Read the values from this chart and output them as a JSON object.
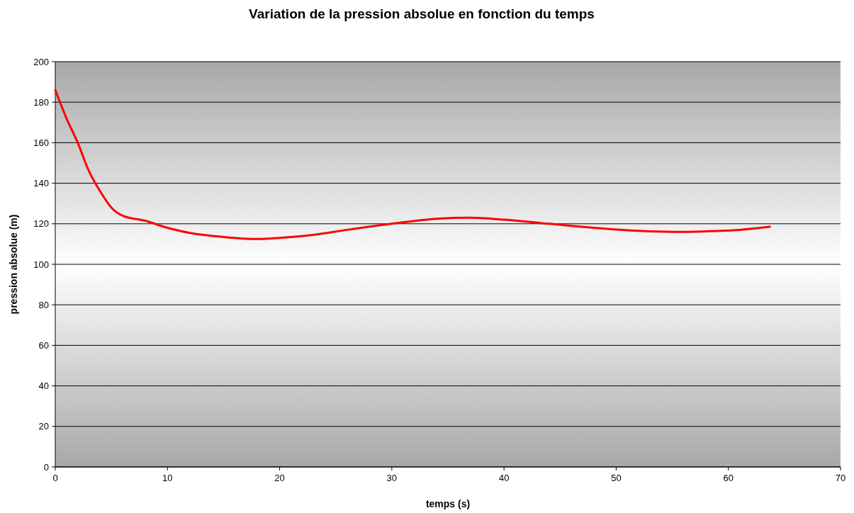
{
  "chart_data": {
    "type": "line",
    "title": "Variation  de la pression absolue en fonction du temps",
    "xlabel": "temps (s)",
    "ylabel": "pression absolue (m)",
    "xlim": [
      0,
      70
    ],
    "xticks": [
      0,
      10,
      20,
      30,
      40,
      50,
      60,
      70
    ],
    "ylim": [
      0,
      200
    ],
    "yticks": [
      0,
      20,
      40,
      60,
      80,
      100,
      120,
      140,
      160,
      180,
      200
    ],
    "grid": "y",
    "marker": "none",
    "line_style": "solid",
    "series": [
      {
        "color": "#ff0000",
        "x": [
          0,
          1,
          2,
          3,
          4,
          5,
          6,
          8,
          10,
          12,
          15,
          18,
          20,
          23,
          26,
          30,
          34,
          37,
          40,
          44,
          48,
          52,
          55,
          58,
          61,
          63.7
        ],
        "values": [
          186,
          172,
          160,
          146,
          136,
          128,
          124,
          121.5,
          118,
          115.5,
          113.5,
          112.5,
          113,
          114.5,
          117,
          120,
          122.5,
          123,
          122,
          120,
          118,
          116.5,
          116,
          116.3,
          117,
          118.5
        ]
      }
    ]
  }
}
